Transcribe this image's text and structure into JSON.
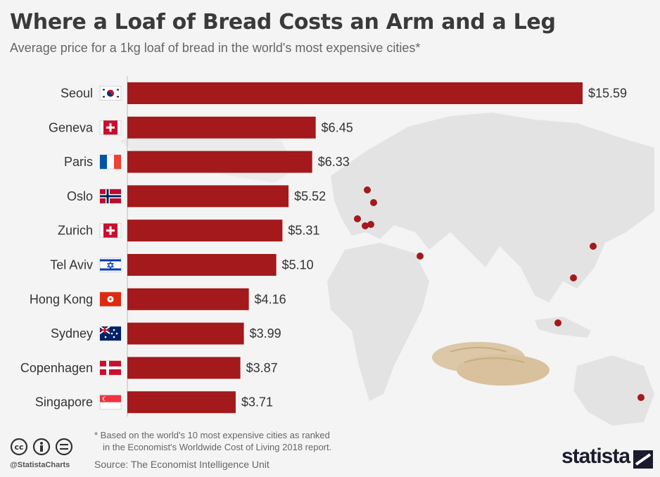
{
  "header": {
    "title": "Where a Loaf of Bread Costs an Arm and a Leg",
    "subtitle": "Average price for a 1kg loaf of bread in the world's most expensive cities*"
  },
  "chart_data": {
    "type": "bar",
    "orientation": "horizontal",
    "title": "Where a Loaf of Bread Costs an Arm and a Leg",
    "subtitle": "Average price for a 1kg loaf of bread in the world's most expensive cities*",
    "categories": [
      "Seoul",
      "Geneva",
      "Paris",
      "Oslo",
      "Zurich",
      "Tel Aviv",
      "Hong Kong",
      "Sydney",
      "Copenhagen",
      "Singapore"
    ],
    "values": [
      15.59,
      6.45,
      6.33,
      5.52,
      5.31,
      5.1,
      4.16,
      3.99,
      3.87,
      3.71
    ],
    "value_labels": [
      "$15.59",
      "$6.45",
      "$6.33",
      "$5.52",
      "$5.31",
      "$5.10",
      "$4.16",
      "$3.99",
      "$3.87",
      "$3.71"
    ],
    "flags": [
      "south-korea-flag",
      "switzerland-flag",
      "france-flag",
      "norway-flag",
      "switzerland-flag",
      "israel-flag",
      "hong-kong-flag",
      "australia-flag",
      "denmark-flag",
      "singapore-flag"
    ],
    "xlim": [
      0,
      15.59
    ],
    "bar_color": "#a3191c",
    "grid": false,
    "legend": "none"
  },
  "footer": {
    "footnote_line1": "* Based on the world's 10 most expensive cities as ranked",
    "footnote_line2": "in the Economist's Worldwide Cost of Living 2018 report.",
    "source": "Source: The Economist Intelligence Unit",
    "handle": "@StatistaCharts",
    "brand": "statista",
    "icons": [
      "creative-commons-icon",
      "attribution-icon",
      "no-derivatives-icon",
      "statista-logo-icon"
    ]
  },
  "colors": {
    "bar": "#a3191c",
    "map": "#e2e2e2",
    "marker": "#a3191c",
    "background": "#f4f4f4"
  }
}
